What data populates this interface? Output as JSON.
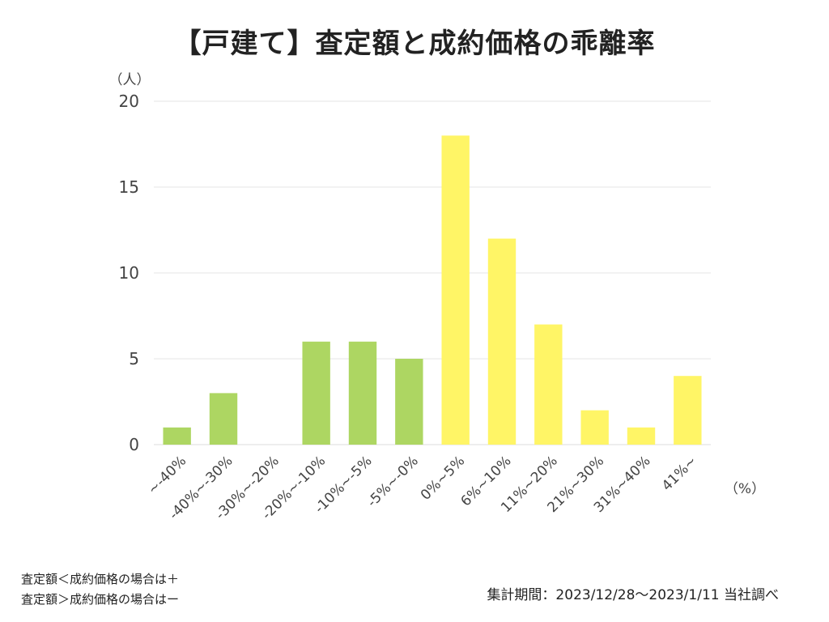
{
  "chart_data": {
    "type": "bar",
    "title": "【戸建て】査定額と成約価格の乖離率",
    "ylabel": "（人）",
    "xlabel": "（%）",
    "ylim": [
      0,
      20
    ],
    "yticks": [
      "0",
      "5",
      "10",
      "15",
      "20"
    ],
    "grid": true,
    "categories": [
      "~-40%",
      "-40%~-30%",
      "-30%~-20%",
      "-20%~-10%",
      "-10%~-5%",
      "-5%~-0%",
      "0%~5%",
      "6%~10%",
      "11%~20%",
      "21%~30%",
      "31%~40%",
      "41%~"
    ],
    "values": [
      1,
      3,
      0,
      6,
      6,
      5,
      18,
      12,
      7,
      2,
      1,
      4
    ],
    "colors": {
      "negative": "#add662",
      "positive": "#fff566",
      "grid": "#e6e6e6",
      "text": "#444444"
    }
  },
  "notes": [
    "査定額＜成約価格の場合は＋",
    "査定額＞成約価格の場合はー"
  ],
  "period": "集計期間：2023/12/28〜2023/1/11 当社調べ"
}
